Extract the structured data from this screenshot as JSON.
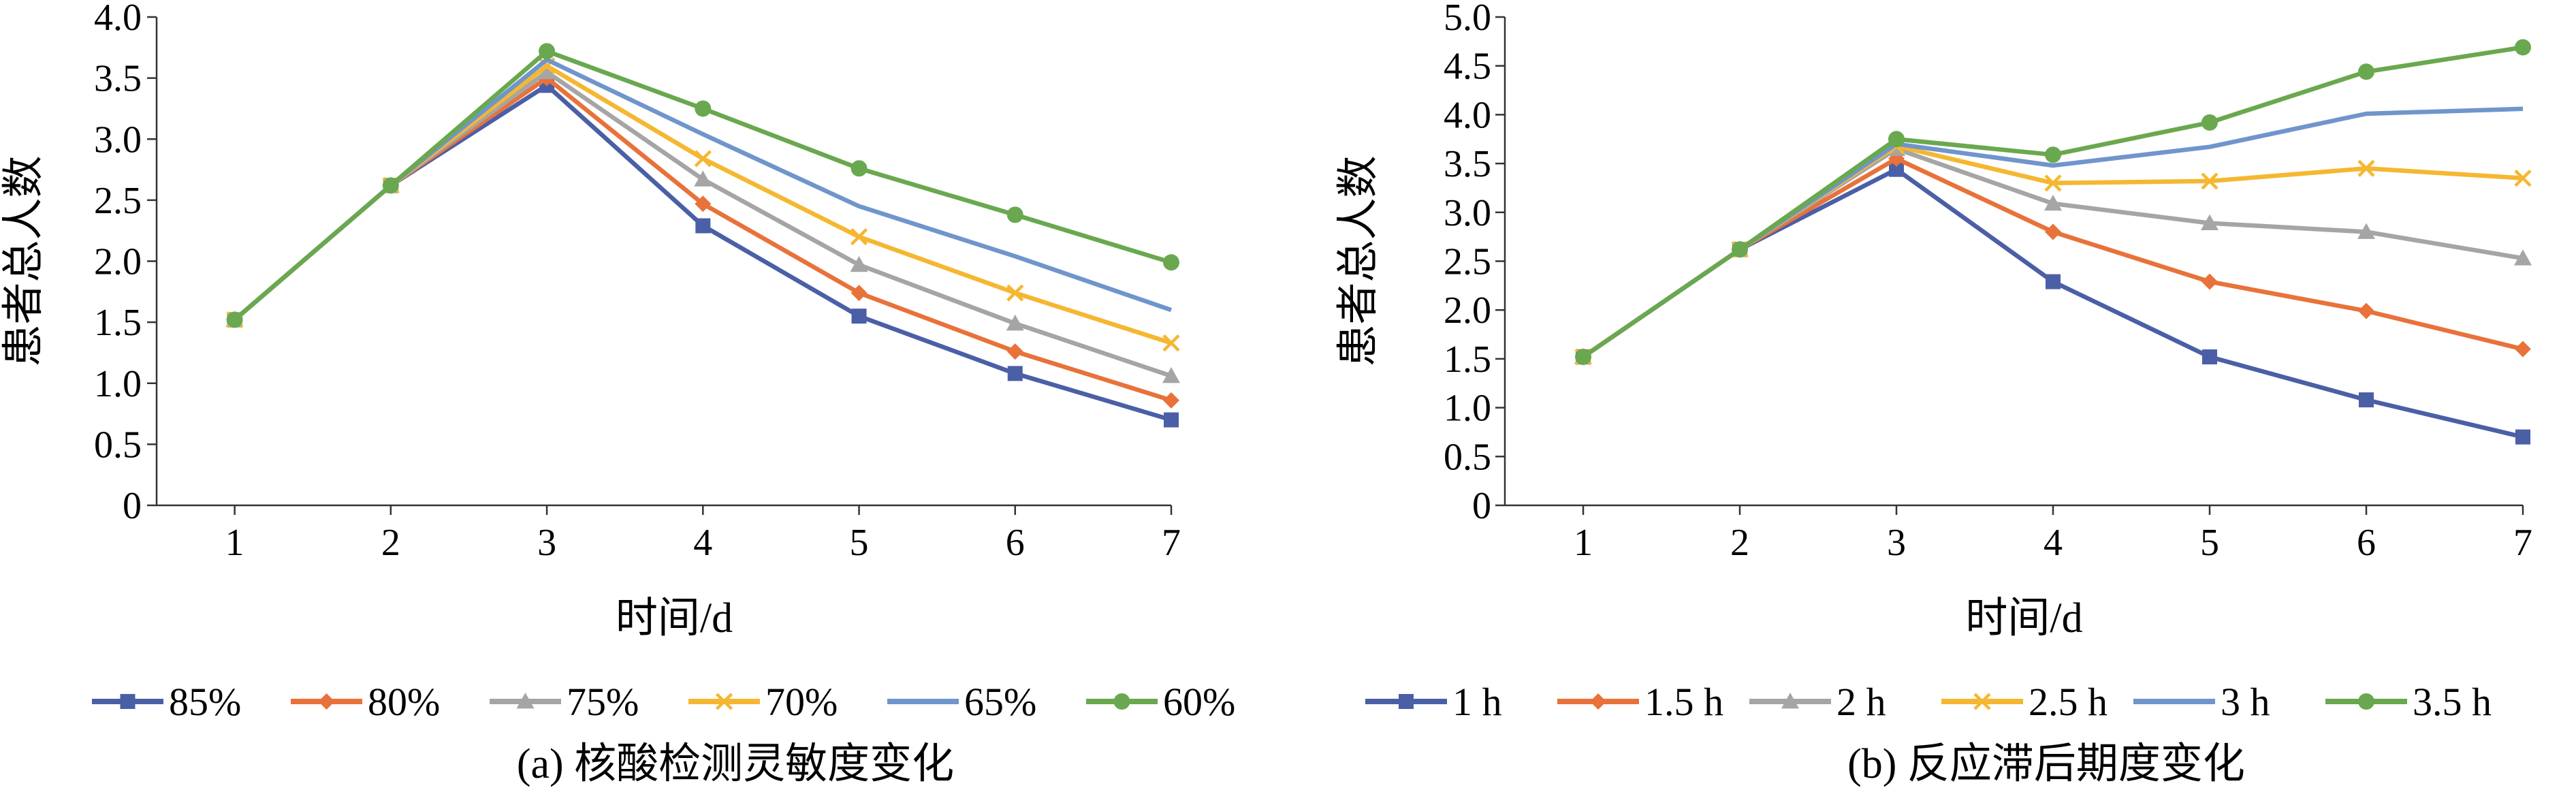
{
  "chart_data": [
    {
      "type": "line",
      "caption": "(a) 核酸检测灵敏度变化",
      "xlabel": "时间/d",
      "ylabel": "患者总人数",
      "x": [
        1,
        2,
        3,
        4,
        5,
        6,
        7
      ],
      "xlim": [
        0.5,
        7
      ],
      "ylim": [
        0,
        4.0
      ],
      "yticks": [
        0,
        0.5,
        1.0,
        1.5,
        2.0,
        2.5,
        3.0,
        3.5,
        4.0
      ],
      "ytick_labels": [
        "0",
        "0.5",
        "1.0",
        "1.5",
        "2.0",
        "2.5",
        "3.0",
        "3.5",
        "4.0"
      ],
      "grid": false,
      "legend_position": "bottom",
      "series": [
        {
          "name": "85%",
          "color": "#4a5fa6",
          "marker": "square",
          "values": [
            1.52,
            2.62,
            3.44,
            2.29,
            1.55,
            1.08,
            0.7
          ]
        },
        {
          "name": "80%",
          "color": "#e8723a",
          "marker": "diamond",
          "values": [
            1.52,
            2.62,
            3.5,
            2.47,
            1.74,
            1.26,
            0.86
          ]
        },
        {
          "name": "75%",
          "color": "#a5a5a5",
          "marker": "triangle",
          "values": [
            1.52,
            2.62,
            3.55,
            2.67,
            1.97,
            1.49,
            1.06
          ]
        },
        {
          "name": "70%",
          "color": "#f5b731",
          "marker": "x",
          "values": [
            1.52,
            2.62,
            3.6,
            2.84,
            2.2,
            1.74,
            1.33
          ]
        },
        {
          "name": "65%",
          "color": "#6f95cc",
          "marker": "none",
          "values": [
            1.52,
            2.62,
            3.65,
            3.04,
            2.45,
            2.04,
            1.6
          ]
        },
        {
          "name": "60%",
          "color": "#6aa84f",
          "marker": "circle",
          "values": [
            1.52,
            2.62,
            3.72,
            3.25,
            2.76,
            2.38,
            1.99
          ]
        }
      ]
    },
    {
      "type": "line",
      "caption": "(b) 反应滞后期度变化",
      "xlabel": "时间/d",
      "ylabel": "患者总人数",
      "x": [
        1,
        2,
        3,
        4,
        5,
        6,
        7
      ],
      "xlim": [
        0.5,
        7
      ],
      "ylim": [
        0,
        5.0
      ],
      "yticks": [
        0,
        0.5,
        1.0,
        1.5,
        2.0,
        2.5,
        3.0,
        3.5,
        4.0,
        4.5,
        5.0
      ],
      "ytick_labels": [
        "0",
        "0.5",
        "1.0",
        "1.5",
        "2.0",
        "2.5",
        "3.0",
        "3.5",
        "4.0",
        "4.5",
        "5.0"
      ],
      "grid": false,
      "legend_position": "bottom",
      "series": [
        {
          "name": "1 h",
          "color": "#4a5fa6",
          "marker": "square",
          "values": [
            1.52,
            2.62,
            3.44,
            2.29,
            1.52,
            1.08,
            0.7
          ]
        },
        {
          "name": "1.5 h",
          "color": "#e8723a",
          "marker": "diamond",
          "values": [
            1.52,
            2.62,
            3.55,
            2.8,
            2.29,
            1.99,
            1.6
          ]
        },
        {
          "name": "2 h",
          "color": "#a5a5a5",
          "marker": "triangle",
          "values": [
            1.52,
            2.62,
            3.65,
            3.09,
            2.89,
            2.8,
            2.53
          ]
        },
        {
          "name": "2.5 h",
          "color": "#f5b731",
          "marker": "x",
          "values": [
            1.52,
            2.62,
            3.68,
            3.3,
            3.32,
            3.45,
            3.35
          ]
        },
        {
          "name": "3 h",
          "color": "#6f95cc",
          "marker": "none",
          "values": [
            1.52,
            2.62,
            3.7,
            3.48,
            3.67,
            4.01,
            4.06
          ]
        },
        {
          "name": "3.5 h",
          "color": "#6aa84f",
          "marker": "circle",
          "values": [
            1.52,
            2.62,
            3.75,
            3.59,
            3.92,
            4.44,
            4.69
          ]
        }
      ]
    }
  ]
}
